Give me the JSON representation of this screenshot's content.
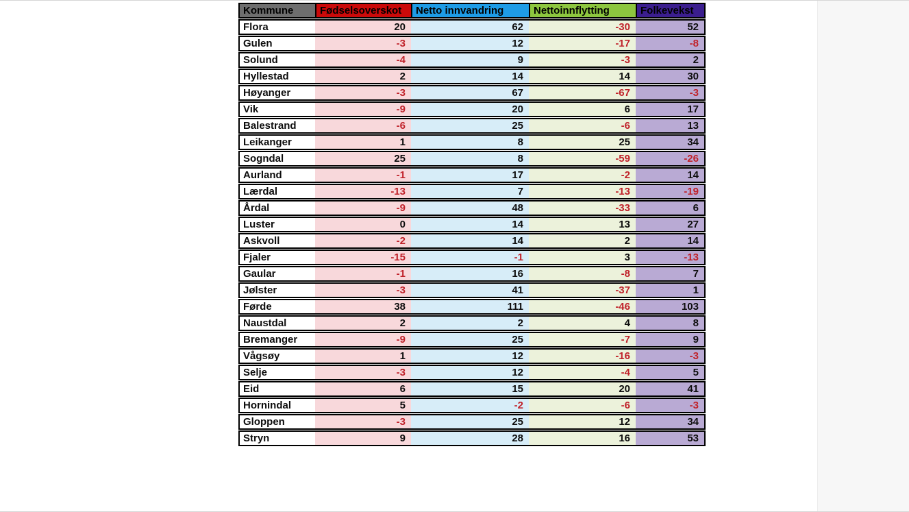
{
  "chart_data": {
    "type": "table",
    "columns": [
      "Kommune",
      "Fødselsoverskot",
      "Netto innvandring",
      "Nettoinnflytting",
      "Folkevekst"
    ],
    "rows": [
      [
        "Flora",
        20,
        62,
        -30,
        52
      ],
      [
        "Gulen",
        -3,
        12,
        -17,
        -8
      ],
      [
        "Solund",
        -4,
        9,
        -3,
        2
      ],
      [
        "Hyllestad",
        2,
        14,
        14,
        30
      ],
      [
        "Høyanger",
        -3,
        67,
        -67,
        -3
      ],
      [
        "Vik",
        -9,
        20,
        6,
        17
      ],
      [
        "Balestrand",
        -6,
        25,
        -6,
        13
      ],
      [
        "Leikanger",
        1,
        8,
        25,
        34
      ],
      [
        "Sogndal",
        25,
        8,
        -59,
        -26
      ],
      [
        "Aurland",
        -1,
        17,
        -2,
        14
      ],
      [
        "Lærdal",
        -13,
        7,
        -13,
        -19
      ],
      [
        "Årdal",
        -9,
        48,
        -33,
        6
      ],
      [
        "Luster",
        0,
        14,
        13,
        27
      ],
      [
        "Askvoll",
        -2,
        14,
        2,
        14
      ],
      [
        "Fjaler",
        -15,
        -1,
        3,
        -13
      ],
      [
        "Gaular",
        -1,
        16,
        -8,
        7
      ],
      [
        "Jølster",
        -3,
        41,
        -37,
        1
      ],
      [
        "Førde",
        38,
        111,
        -46,
        103
      ],
      [
        "Naustdal",
        2,
        2,
        4,
        8
      ],
      [
        "Bremanger",
        -9,
        25,
        -7,
        9
      ],
      [
        "Vågsøy",
        1,
        12,
        -16,
        -3
      ],
      [
        "Selje",
        -3,
        12,
        -4,
        5
      ],
      [
        "Eid",
        6,
        15,
        20,
        41
      ],
      [
        "Hornindal",
        5,
        -2,
        -6,
        -3
      ],
      [
        "Gloppen",
        -3,
        25,
        12,
        34
      ],
      [
        "Stryn",
        9,
        28,
        16,
        53
      ]
    ]
  },
  "colors": {
    "header_backgrounds": [
      "#6e6e6e",
      "#cb0a0a",
      "#1e9ce6",
      "#8dc63f",
      "#3b1e8e"
    ],
    "cell_backgrounds": [
      "#ffffff",
      "#f8d8db",
      "#d7edf8",
      "#ecf2db",
      "#b9aad4"
    ],
    "positive_text": "#0d0d0d",
    "negative_text": "#c0222a",
    "header_text": "#000000",
    "border": "#000000"
  }
}
